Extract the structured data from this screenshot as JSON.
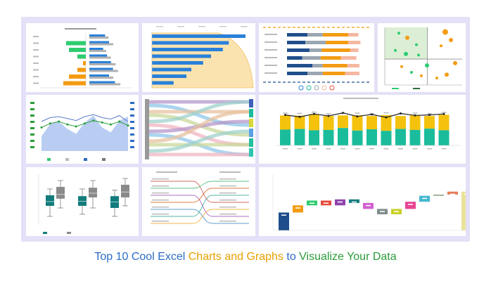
{
  "colors": {
    "frame": "#e4e0f7",
    "green": "#2ecc71",
    "orange": "#f39c12",
    "blue": "#2980d9",
    "gray": "#b0b0b0",
    "teal": "#1abc9c",
    "yellow": "#f4c20d",
    "darkblue": "#1f4e8c",
    "darkteal": "#127c7c",
    "area": "#b9cdf3",
    "peach": "#fbe3b0",
    "red": "#e74c3c"
  },
  "caption": {
    "part1": "Top 10 Cool Excel ",
    "part2": "Charts and Graphs ",
    "part3": "to ",
    "part4": "Visualize Your Data"
  },
  "chart_data": [
    {
      "type": "bar",
      "subtype": "diverging-bar",
      "categories": [
        "1",
        "2",
        "3",
        "4",
        "5",
        "6",
        "7",
        "8"
      ],
      "series": [
        {
          "values": [
            0,
            7,
            6,
            3,
            1,
            0,
            0,
            0
          ]
        },
        {
          "values": [
            0,
            0,
            0,
            0,
            1,
            3,
            6,
            8
          ]
        },
        {
          "values": [
            8,
            10,
            7,
            9,
            11,
            12,
            10,
            13
          ]
        },
        {
          "values": [
            0,
            0,
            0,
            0,
            0,
            0,
            0,
            0
          ]
        }
      ]
    },
    {
      "type": "bar",
      "subtype": "bar-with-cumulative-curve",
      "orientation": "horizontal",
      "values": [
        95,
        78,
        72,
        60,
        52,
        40,
        35,
        22
      ]
    },
    {
      "type": "bar",
      "subtype": "stacked-bar-horizontal",
      "series": [
        {
          "values": [
            20,
            18,
            22,
            15,
            25,
            20
          ]
        },
        {
          "values": [
            15,
            20,
            12,
            18,
            10,
            15
          ]
        },
        {
          "values": [
            25,
            22,
            28,
            20,
            24,
            22
          ]
        },
        {
          "values": [
            10,
            12,
            8,
            15,
            12,
            14
          ]
        }
      ]
    },
    {
      "type": "scatter",
      "subtype": "quadrant-bubble",
      "points": [
        {
          "x": 2,
          "y": 9,
          "r": 2,
          "s": "green"
        },
        {
          "x": 3.2,
          "y": 8.2,
          "r": 3,
          "s": "orange"
        },
        {
          "x": 4.5,
          "y": 7,
          "r": 2,
          "s": "green"
        },
        {
          "x": 1.5,
          "y": 6,
          "r": 2,
          "s": "green"
        },
        {
          "x": 3,
          "y": 5.4,
          "r": 3,
          "s": "green"
        },
        {
          "x": 4.8,
          "y": 5.2,
          "r": 2,
          "s": "green"
        },
        {
          "x": 6,
          "y": 3.4,
          "r": 3,
          "s": "green"
        },
        {
          "x": 2.4,
          "y": 3.2,
          "r": 2,
          "s": "orange"
        },
        {
          "x": 3.8,
          "y": 2.2,
          "r": 2,
          "s": "green"
        },
        {
          "x": 5.2,
          "y": 1.6,
          "r": 2,
          "s": "orange"
        },
        {
          "x": 8.6,
          "y": 9.2,
          "r": 4,
          "s": "orange"
        },
        {
          "x": 9.4,
          "y": 7.8,
          "r": 3,
          "s": "orange"
        },
        {
          "x": 8,
          "y": 6.8,
          "r": 2,
          "s": "orange"
        },
        {
          "x": 10,
          "y": 3.8,
          "r": 3,
          "s": "orange"
        },
        {
          "x": 8.8,
          "y": 1.8,
          "r": 3,
          "s": "orange"
        },
        {
          "x": 7.4,
          "y": 1.2,
          "r": 2,
          "s": "orange"
        }
      ]
    },
    {
      "type": "area",
      "subtype": "area-with-lines",
      "x": [
        0,
        1,
        2,
        3,
        4,
        5,
        6,
        7,
        8,
        9,
        10
      ],
      "series": [
        {
          "values": [
            30,
            55,
            60,
            45,
            35,
            58,
            72,
            48,
            38,
            62,
            70
          ]
        },
        {
          "values": [
            60,
            68,
            70,
            66,
            62,
            70,
            74,
            68,
            65,
            72,
            60
          ]
        },
        {
          "values": [
            48,
            56,
            60,
            54,
            50,
            56,
            62,
            58,
            54,
            60,
            52
          ]
        }
      ]
    },
    {
      "type": "other",
      "subtype": "sankey",
      "flows": [
        [
          0,
          0
        ],
        [
          0,
          2
        ],
        [
          1,
          1
        ],
        [
          1,
          3
        ],
        [
          2,
          0
        ],
        [
          2,
          4
        ],
        [
          3,
          2
        ],
        [
          3,
          5
        ],
        [
          4,
          1
        ],
        [
          4,
          4
        ],
        [
          5,
          3
        ],
        [
          5,
          5
        ]
      ]
    },
    {
      "type": "bar",
      "subtype": "stacked-column-with-line",
      "categories": [
        "1",
        "2",
        "3",
        "4",
        "5",
        "6",
        "7",
        "8",
        "9",
        "10",
        "11",
        "12"
      ],
      "series": [
        {
          "values": [
            50,
            52,
            48,
            49,
            55,
            47,
            51,
            46,
            52,
            49,
            53,
            48
          ]
        },
        {
          "values": [
            45,
            42,
            50,
            44,
            40,
            48,
            42,
            50,
            41,
            46,
            40,
            49
          ]
        },
        {
          "values": [
            62,
            58,
            64,
            60,
            66,
            59,
            63,
            57,
            65,
            61,
            62,
            64
          ]
        }
      ]
    },
    {
      "type": "other",
      "subtype": "box-plot",
      "groups": [
        {
          "boxes": [
            {
              "min": 2,
              "q1": 4.5,
              "median": 5.5,
              "q3": 7,
              "max": 8.5,
              "s": "teal"
            },
            {
              "min": 4,
              "q1": 6.2,
              "median": 7.2,
              "q3": 9,
              "max": 10.5,
              "s": "gray"
            }
          ]
        },
        {
          "boxes": [
            {
              "min": 2.5,
              "q1": 4.5,
              "median": 5.6,
              "q3": 6.8,
              "max": 8.5,
              "s": "teal"
            },
            {
              "min": 4,
              "q1": 6.5,
              "median": 7.5,
              "q3": 8.8,
              "max": 10.5,
              "s": "gray"
            }
          ]
        },
        {
          "boxes": [
            {
              "min": 2,
              "q1": 4,
              "median": 5.4,
              "q3": 6.8,
              "max": 8.2,
              "s": "teal"
            },
            {
              "min": 4.5,
              "q1": 6.5,
              "median": 7.8,
              "q3": 9.5,
              "max": 11,
              "s": "gray"
            }
          ]
        }
      ]
    },
    {
      "type": "other",
      "subtype": "slope-chart",
      "lines": 7
    },
    {
      "type": "bar",
      "subtype": "waterfall",
      "steps": [
        {
          "delta": 30,
          "s": "darkblue",
          "total": true
        },
        {
          "delta": 12,
          "s": "orange"
        },
        {
          "delta": 8,
          "s": "green"
        },
        {
          "delta": -8,
          "s": "red"
        },
        {
          "delta": 10,
          "s": "purple"
        },
        {
          "delta": -6,
          "s": "darkteal"
        },
        {
          "delta": -10,
          "s": "pink"
        },
        {
          "delta": -9,
          "s": "grayish"
        },
        {
          "delta": 9,
          "s": "lime"
        },
        {
          "delta": 12,
          "s": "pink2"
        },
        {
          "delta": 10,
          "s": "sky"
        },
        {
          "delta": 2,
          "s": "sage"
        },
        {
          "delta": 5,
          "s": "coral"
        },
        {
          "delta": 65,
          "s": "khaki",
          "total": true
        }
      ]
    }
  ]
}
